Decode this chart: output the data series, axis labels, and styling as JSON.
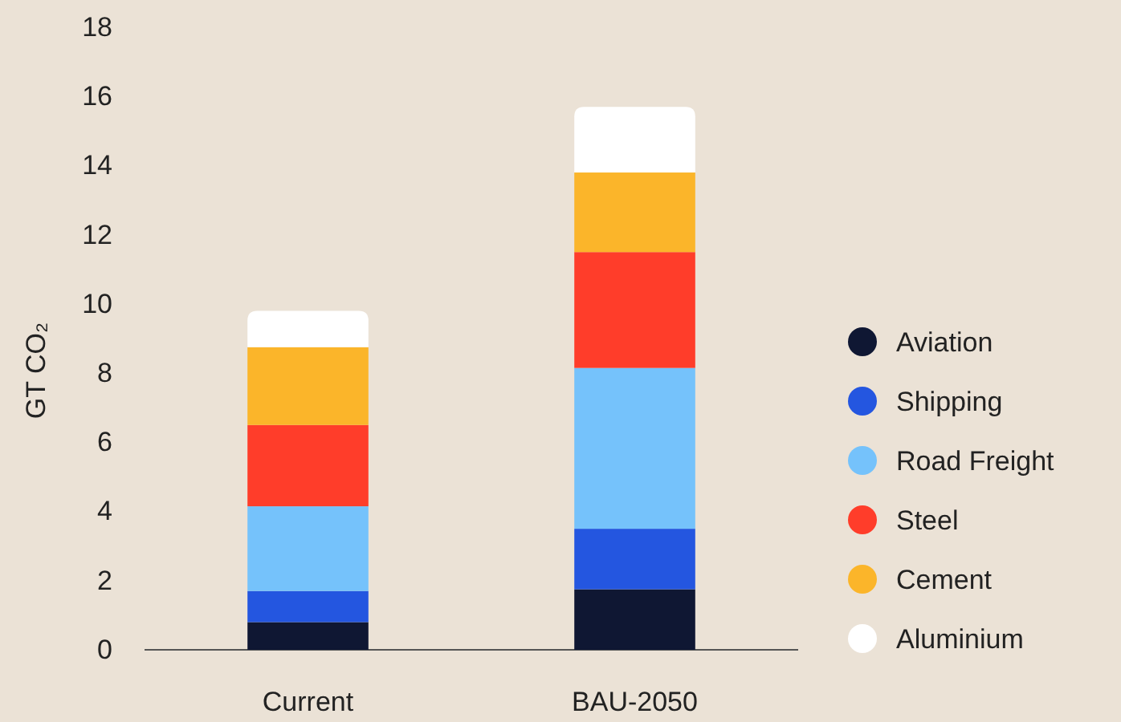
{
  "chart_data": {
    "type": "bar",
    "stacked": true,
    "ylabel": "GT CO₂",
    "categories": [
      "Current",
      "BAU-2050"
    ],
    "series": [
      {
        "name": "Aviation",
        "color": "#0f1733",
        "values": [
          0.8,
          1.75
        ]
      },
      {
        "name": "Shipping",
        "color": "#2456e0",
        "values": [
          0.9,
          1.75
        ]
      },
      {
        "name": "Road Freight",
        "color": "#75c2fb",
        "values": [
          2.45,
          4.65
        ]
      },
      {
        "name": "Steel",
        "color": "#ff3d2a",
        "values": [
          2.35,
          3.35
        ]
      },
      {
        "name": "Cement",
        "color": "#fbb52a",
        "values": [
          2.25,
          2.3
        ]
      },
      {
        "name": "Aluminium",
        "color": "#ffffff",
        "values": [
          1.05,
          1.9
        ]
      }
    ],
    "ylim": [
      0,
      18
    ],
    "yticks": [
      0,
      2,
      4,
      6,
      8,
      10,
      12,
      14,
      16,
      18
    ],
    "legend": "right"
  }
}
